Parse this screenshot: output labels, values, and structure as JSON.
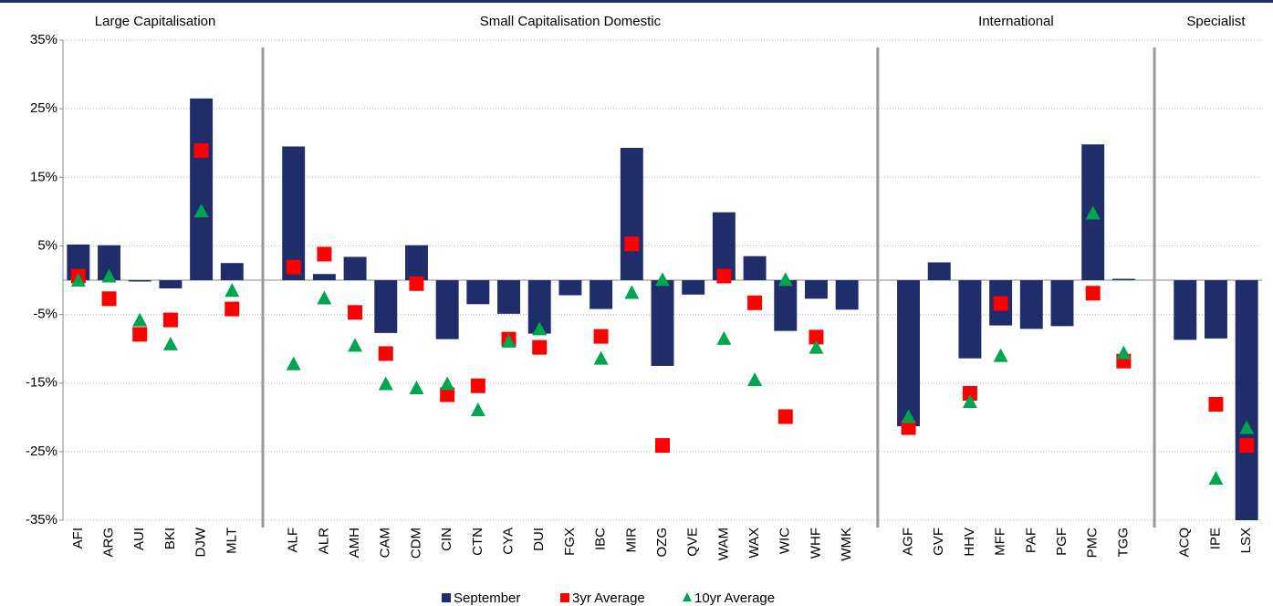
{
  "chart_data": {
    "type": "bar",
    "groups": [
      "Large Capitalisation",
      "Small Capitalisation Domestic",
      "International",
      "Specialist"
    ],
    "categories": [
      "AFI",
      "ARG",
      "AUI",
      "BKI",
      "DJW",
      "MLT",
      null,
      "ALF",
      "ALR",
      "AMH",
      "CAM",
      "CDM",
      "CIN",
      "CTN",
      "CYA",
      "DUI",
      "FGX",
      "IBC",
      "MIR",
      "OZG",
      "QVE",
      "WAM",
      "WAX",
      "WIC",
      "WHF",
      "WMK",
      null,
      "AGF",
      "GVF",
      "HHV",
      "MFF",
      "PAF",
      "PGF",
      "PMC",
      "TGG",
      null,
      "ACQ",
      "IPE",
      "LSX"
    ],
    "series": [
      {
        "name": "September",
        "marker": "bar",
        "color": "#1f2d6b",
        "values": [
          5.2,
          5.1,
          -0.2,
          -1.2,
          26.5,
          2.5,
          null,
          19.5,
          0.9,
          3.4,
          -7.7,
          5.1,
          -8.6,
          -3.5,
          -4.9,
          -7.8,
          -2.2,
          -4.2,
          19.3,
          -12.5,
          -2.1,
          9.9,
          3.5,
          -7.4,
          -2.7,
          -4.3,
          null,
          -21.3,
          2.6,
          -11.4,
          -6.6,
          -7.1,
          -6.7,
          19.8,
          0.2,
          null,
          -8.7,
          -8.5,
          -35
        ]
      },
      {
        "name": "3yr Average",
        "marker": "square",
        "color": "#ff0000",
        "values": [
          0.6,
          -2.7,
          -7.9,
          -5.8,
          18.9,
          -4.2,
          null,
          1.9,
          3.8,
          -4.7,
          -10.7,
          -0.5,
          -16.7,
          -15.4,
          -8.6,
          -9.8,
          null,
          -8.2,
          5.3,
          -24.1,
          null,
          0.6,
          -3.3,
          -19.9,
          -8.3,
          null,
          null,
          -21.5,
          null,
          -16.5,
          -3.4,
          null,
          null,
          -1.9,
          -11.8,
          null,
          null,
          -18.1,
          -24.1
        ]
      },
      {
        "name": "10yr Average",
        "marker": "triangle",
        "color": "#00a550",
        "values": [
          0,
          0.6,
          -5.8,
          -9.3,
          10.1,
          -1.5,
          null,
          -12.2,
          -2.6,
          -9.5,
          -15.1,
          -15.7,
          -15.1,
          -18.9,
          -8.9,
          -7.1,
          null,
          -11.4,
          -1.8,
          0.1,
          null,
          -8.5,
          -14.5,
          0.1,
          -9.8,
          null,
          null,
          -19.9,
          null,
          -17.7,
          -11,
          null,
          null,
          9.8,
          -10.6,
          null,
          null,
          -28.9,
          -21.5
        ]
      }
    ],
    "ylim": [
      -35,
      35
    ],
    "yticks": [
      {
        "value": 35,
        "label": "35%"
      },
      {
        "value": 25,
        "label": "25%"
      },
      {
        "value": 15,
        "label": "15%"
      },
      {
        "value": 5,
        "label": "5%"
      },
      {
        "value": -5,
        "label": "-5%"
      },
      {
        "value": -15,
        "label": "-15%"
      },
      {
        "value": -25,
        "label": "-25%"
      },
      {
        "value": -35,
        "label": "-35%"
      }
    ],
    "grid": true
  }
}
